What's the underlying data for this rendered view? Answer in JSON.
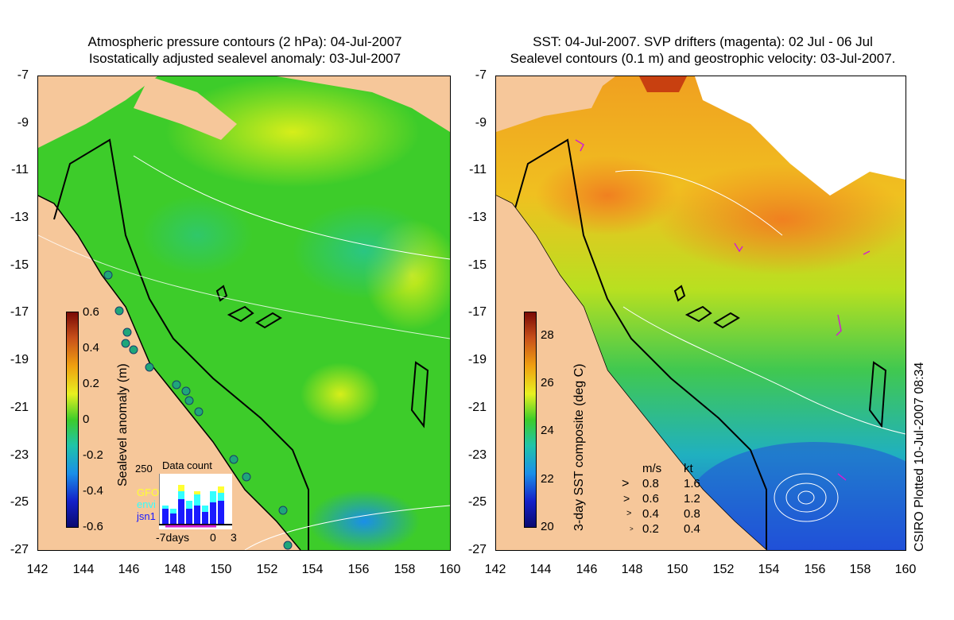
{
  "left_panel": {
    "title_line1": "Atmospheric pressure contours (2 hPa): 04-Jul-2007",
    "title_line2": "Isostatically adjusted sealevel anomaly: 03-Jul-2007",
    "colorbar": {
      "title": "Sealevel anomaly (m)",
      "ticks": [
        "0.6",
        "0.4",
        "0.2",
        "0",
        "-0.2",
        "-0.4",
        "-0.6"
      ]
    },
    "inset": {
      "title": "Data count",
      "ymax_label": "250",
      "legend": [
        {
          "name": "GFO",
          "color": "#ffff33"
        },
        {
          "name": "envi",
          "color": "#33ffff"
        },
        {
          "name": "jsn1",
          "color": "#1a1aff"
        }
      ],
      "x_labels": [
        "-7days",
        "0",
        "3"
      ]
    }
  },
  "right_panel": {
    "title_line1": "SST: 04-Jul-2007. SVP drifters (magenta): 02 Jul - 06 Jul",
    "title_line2": "Sealevel contours (0.1 m) and geostrophic velocity: 03-Jul-2007.",
    "colorbar": {
      "title": "3-day SST composite (deg C)",
      "ticks": [
        "28",
        "26",
        "24",
        "22",
        "20"
      ]
    },
    "velocity_key": {
      "header": [
        "m/s",
        "kt"
      ],
      "rows": [
        [
          "0.8",
          "1.6"
        ],
        [
          "0.6",
          "1.2"
        ],
        [
          "0.4",
          "0.8"
        ],
        [
          "0.2",
          "0.4"
        ]
      ]
    },
    "credit": "CSIRO Plotted 10-Jul-2007 08:34"
  },
  "axes": {
    "y_labels": [
      "-7",
      "-9",
      "-11",
      "-13",
      "-15",
      "-17",
      "-19",
      "-21",
      "-23",
      "-25",
      "-27"
    ],
    "x_labels": [
      "142",
      "144",
      "146",
      "148",
      "150",
      "152",
      "154",
      "156",
      "158",
      "160"
    ]
  },
  "colors": {
    "land": "#f6c79a",
    "sla_ocean": "#33cc22"
  }
}
